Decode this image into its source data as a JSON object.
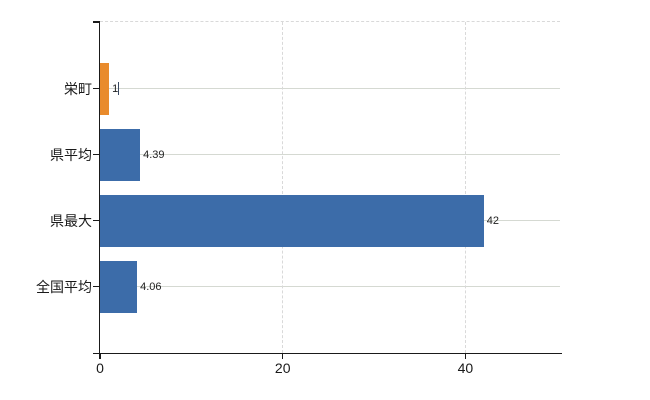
{
  "chart_data": {
    "type": "bar",
    "orientation": "horizontal",
    "title": "",
    "categories": [
      "栄町",
      "県平均",
      "県最大",
      "全国平均"
    ],
    "values": [
      1,
      4.39,
      42,
      4.06
    ],
    "value_labels": [
      "1",
      "4.39",
      "42",
      "4.06"
    ],
    "series": [
      {
        "name": "value",
        "values": [
          1,
          4.39,
          42,
          4.06
        ]
      }
    ],
    "bar_colors": [
      "#E98B2C",
      "#3C6CA9",
      "#3C6CA9",
      "#3C6CA9"
    ],
    "xticks": [
      0,
      20,
      40
    ],
    "xtick_labels": [
      "0",
      "20",
      "40"
    ],
    "xlim": [
      0,
      50.35
    ],
    "xlabel": "",
    "ylabel": "",
    "legend": "none",
    "grid": {
      "vertical_dashed": true,
      "row_lines": true,
      "top_boundary_dashed": true,
      "dashed_color": "#d9d9d9",
      "row_line_color": "#d5d9d2"
    },
    "colors": {
      "background": "#ffffff",
      "axis": "#1a1a1a",
      "label_text": "#1a1a1a",
      "value_text": "#222222",
      "caret": "#3b4a63"
    }
  }
}
